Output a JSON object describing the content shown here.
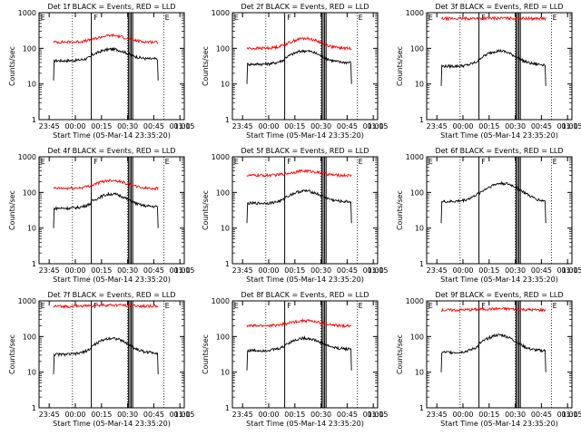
{
  "chart_data": [
    {
      "type": "line",
      "title": "Det 1f BLACK = Events, RED = LLD",
      "xlabel": "Start Time (05-Mar-14 23:35:20)",
      "ylabel": "Counts/sec",
      "yscale": "log",
      "ylim": [
        1,
        1000
      ],
      "xticks": [
        "23:45",
        "00:00",
        "00:15",
        "00:30",
        "00:45",
        "01:00",
        "01:15"
      ],
      "yticks": [
        "1",
        "10",
        "100",
        "1000"
      ],
      "markers": [
        "E",
        "F",
        "E"
      ],
      "series": [
        {
          "name": "Events",
          "color": "#000000",
          "level": 50,
          "peak": 95,
          "bump": "mid"
        },
        {
          "name": "LLD",
          "color": "#ff0000",
          "level": 150,
          "peak": 230,
          "bump": "mid"
        }
      ]
    },
    {
      "type": "line",
      "title": "Det 2f BLACK = Events, RED = LLD",
      "xlabel": "Start Time (05-Mar-14 23:35:20)",
      "ylabel": "Counts/sec",
      "yscale": "log",
      "ylim": [
        1,
        1000
      ],
      "xticks": [
        "23:45",
        "00:00",
        "00:15",
        "00:30",
        "00:45",
        "01:00",
        "01:15"
      ],
      "yticks": [
        "1",
        "10",
        "100",
        "1000"
      ],
      "markers": [
        "E",
        "F",
        "E"
      ],
      "series": [
        {
          "name": "Events",
          "color": "#000000",
          "level": 40,
          "peak": 85,
          "bump": "mid"
        },
        {
          "name": "LLD",
          "color": "#ff0000",
          "level": 100,
          "peak": 190,
          "bump": "mid"
        }
      ]
    },
    {
      "type": "line",
      "title": "Det 3f BLACK = Events, RED = LLD",
      "xlabel": "Start Time (05-Mar-14 23:35:20)",
      "ylabel": "Counts/sec",
      "yscale": "log",
      "ylim": [
        1,
        1000
      ],
      "xticks": [
        "23:45",
        "00:00",
        "00:15",
        "00:30",
        "00:45",
        "01:00",
        "01:15"
      ],
      "yticks": [
        "1",
        "10",
        "100",
        "1000"
      ],
      "markers": [
        "E",
        "F",
        "E"
      ],
      "series": [
        {
          "name": "Events",
          "color": "#000000",
          "level": 35,
          "peak": 85,
          "bump": "mid"
        },
        {
          "name": "LLD",
          "color": "#ff0000",
          "level": 680,
          "peak": 700,
          "bump": "flat"
        }
      ]
    },
    {
      "type": "line",
      "title": "Det 4f BLACK = Events, RED = LLD",
      "xlabel": "Start Time (05-Mar-14 23:35:20)",
      "ylabel": "Counts/sec",
      "yscale": "log",
      "ylim": [
        1,
        1000
      ],
      "xticks": [
        "23:45",
        "00:00",
        "00:15",
        "00:30",
        "00:45",
        "01:00",
        "01:15"
      ],
      "yticks": [
        "1",
        "10",
        "100",
        "1000"
      ],
      "markers": [
        "E",
        "F",
        "E"
      ],
      "series": [
        {
          "name": "Events",
          "color": "#000000",
          "level": 40,
          "peak": 90,
          "bump": "mid"
        },
        {
          "name": "LLD",
          "color": "#ff0000",
          "level": 130,
          "peak": 220,
          "bump": "mid"
        }
      ]
    },
    {
      "type": "line",
      "title": "Det 5f BLACK = Events, RED = LLD",
      "xlabel": "Start Time (05-Mar-14 23:35:20)",
      "ylabel": "Counts/sec",
      "yscale": "log",
      "ylim": [
        1,
        1000
      ],
      "xticks": [
        "23:45",
        "00:00",
        "00:15",
        "00:30",
        "00:45",
        "01:00",
        "01:15"
      ],
      "yticks": [
        "1",
        "10",
        "100",
        "1000"
      ],
      "markers": [
        "E",
        "F",
        "E"
      ],
      "series": [
        {
          "name": "Events",
          "color": "#000000",
          "level": 55,
          "peak": 110,
          "bump": "mid"
        },
        {
          "name": "LLD",
          "color": "#ff0000",
          "level": 300,
          "peak": 400,
          "bump": "mid"
        }
      ]
    },
    {
      "type": "line",
      "title": "Det 6f BLACK = Events, RED = LLD",
      "xlabel": "Start Time (05-Mar-14 23:35:20)",
      "ylabel": "Counts/sec",
      "yscale": "log",
      "ylim": [
        1,
        1000
      ],
      "xticks": [
        "23:45",
        "00:00",
        "00:15",
        "00:30",
        "00:45",
        "01:00",
        "01:15"
      ],
      "yticks": [
        "1",
        "10",
        "100",
        "1000"
      ],
      "markers": [
        "E",
        "F",
        "E"
      ],
      "series": [
        {
          "name": "Events",
          "color": "#000000",
          "level": 55,
          "peak": 180,
          "bump": "late"
        }
      ]
    },
    {
      "type": "line",
      "title": "Det 7f BLACK = Events, RED = LLD",
      "xlabel": "Start Time (05-Mar-14 23:35:20)",
      "ylabel": "Counts/sec",
      "yscale": "log",
      "ylim": [
        1,
        1000
      ],
      "xticks": [
        "23:45",
        "00:00",
        "00:15",
        "00:30",
        "00:45",
        "01:00",
        "01:15"
      ],
      "yticks": [
        "1",
        "10",
        "100",
        "1000"
      ],
      "markers": [
        "E",
        "F",
        "E"
      ],
      "series": [
        {
          "name": "Events",
          "color": "#000000",
          "level": 35,
          "peak": 90,
          "bump": "mid"
        },
        {
          "name": "LLD",
          "color": "#ff0000",
          "level": 700,
          "peak": 760,
          "bump": "flat"
        }
      ]
    },
    {
      "type": "line",
      "title": "Det 8f BLACK = Events, RED = LLD",
      "xlabel": "Start Time (05-Mar-14 23:35:20)",
      "ylabel": "Counts/sec",
      "yscale": "log",
      "ylim": [
        1,
        1000
      ],
      "xticks": [
        "23:45",
        "00:00",
        "00:15",
        "00:30",
        "00:45",
        "01:00",
        "01:15"
      ],
      "yticks": [
        "1",
        "10",
        "100",
        "1000"
      ],
      "markers": [
        "E",
        "F",
        "E"
      ],
      "series": [
        {
          "name": "Events",
          "color": "#000000",
          "level": 45,
          "peak": 90,
          "bump": "mid"
        },
        {
          "name": "LLD",
          "color": "#ff0000",
          "level": 200,
          "peak": 280,
          "bump": "mid"
        }
      ]
    },
    {
      "type": "line",
      "title": "Det 9f BLACK = Events, RED = LLD",
      "xlabel": "Start Time (05-Mar-14 23:35:20)",
      "ylabel": "Counts/sec",
      "yscale": "log",
      "ylim": [
        1,
        1000
      ],
      "xticks": [
        "23:45",
        "00:00",
        "00:15",
        "00:30",
        "00:45",
        "01:00",
        "01:15"
      ],
      "yticks": [
        "1",
        "10",
        "100",
        "1000"
      ],
      "markers": [
        "E",
        "F",
        "E"
      ],
      "series": [
        {
          "name": "Events",
          "color": "#000000",
          "level": 40,
          "peak": 110,
          "bump": "mid"
        },
        {
          "name": "LLD",
          "color": "#ff0000",
          "level": 550,
          "peak": 600,
          "bump": "flat"
        }
      ]
    }
  ]
}
